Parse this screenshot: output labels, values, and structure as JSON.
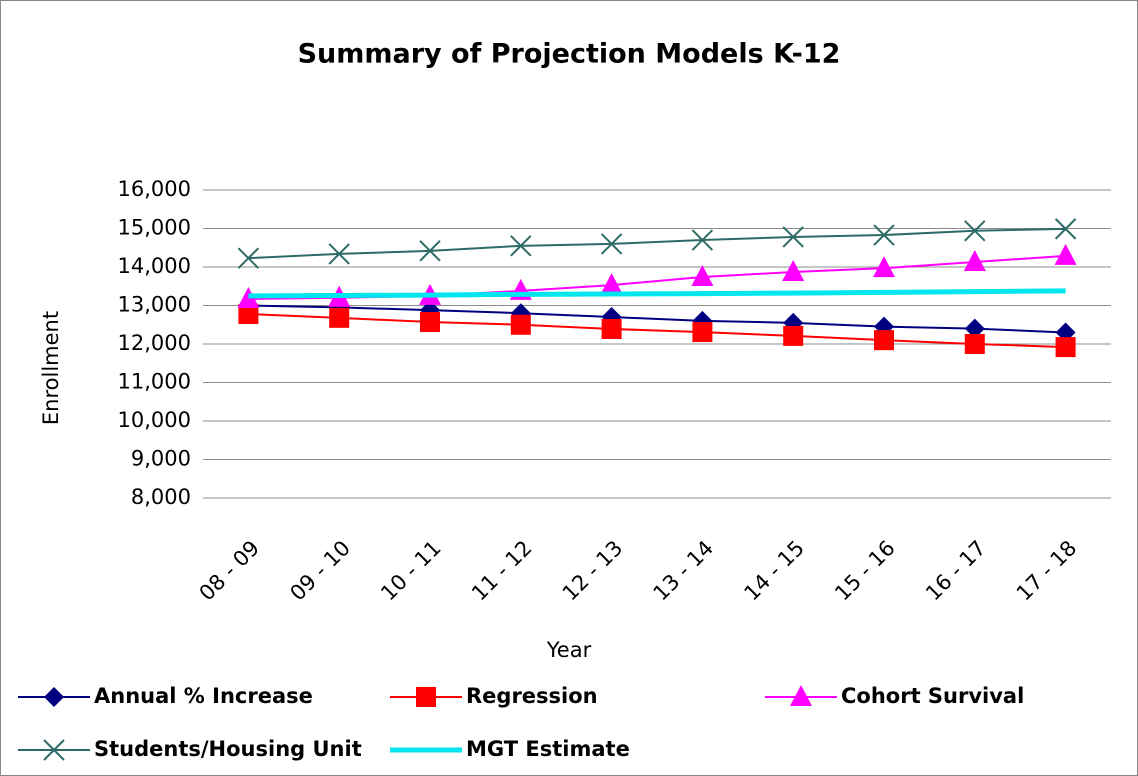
{
  "chart_data": {
    "type": "line",
    "title": "Summary of Projection Models K-12",
    "x_label": "Year",
    "y_label": "Enrollment",
    "categories": [
      "08 - 09",
      "09 - 10",
      "10 - 11",
      "11 - 12",
      "12 - 13",
      "13 - 14",
      "14 - 15",
      "15 - 16",
      "16 - 17",
      "17 - 18"
    ],
    "series": [
      {
        "name": "Annual % Increase",
        "color": "#000080",
        "marker": "diamond",
        "values": [
          13000,
          12950,
          12880,
          12800,
          12700,
          12600,
          12550,
          12450,
          12400,
          12300
        ]
      },
      {
        "name": "Regression",
        "color": "#ff0000",
        "marker": "square",
        "values": [
          12780,
          12680,
          12570,
          12500,
          12390,
          12310,
          12210,
          12100,
          12000,
          11920
        ]
      },
      {
        "name": "Cohort Survival",
        "color": "#ff00ff",
        "marker": "triangle",
        "values": [
          13170,
          13200,
          13250,
          13380,
          13530,
          13740,
          13870,
          13970,
          14130,
          14290
        ]
      },
      {
        "name": "Students/Housing Unit",
        "color": "#2e6b68",
        "marker": "x",
        "values": [
          14230,
          14340,
          14420,
          14550,
          14600,
          14700,
          14780,
          14830,
          14940,
          14990
        ]
      },
      {
        "name": "MGT Estimate",
        "color": "#00e5ee",
        "marker": "none",
        "values": [
          13250,
          13260,
          13270,
          13290,
          13300,
          13310,
          13320,
          13340,
          13360,
          13380
        ]
      }
    ],
    "ylim": [
      8000,
      16000
    ],
    "yticks": [
      {
        "value": 8000,
        "label": "8,000"
      },
      {
        "value": 9000,
        "label": "9,000"
      },
      {
        "value": 10000,
        "label": "10,000"
      },
      {
        "value": 11000,
        "label": "11,000"
      },
      {
        "value": 12000,
        "label": "12,000"
      },
      {
        "value": 13000,
        "label": "13,000"
      },
      {
        "value": 14000,
        "label": "14,000"
      },
      {
        "value": 15000,
        "label": "15,000"
      },
      {
        "value": 16000,
        "label": "16,000"
      }
    ],
    "grid": true
  }
}
